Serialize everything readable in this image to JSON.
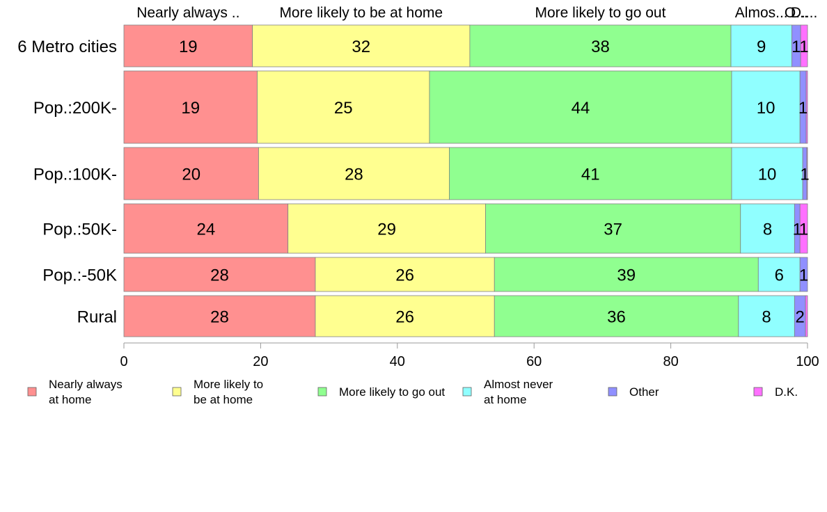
{
  "chart_data": {
    "type": "bar",
    "orientation": "horizontal",
    "stacked": true,
    "categories": [
      "6 Metro cities",
      "Pop.:200K-",
      "Pop.:100K-",
      "Pop.:50K-",
      "Pop.:-50K",
      "Rural"
    ],
    "series": [
      {
        "name": "Nearly always at home",
        "color": "#ff9090",
        "values": [
          18.8,
          19.5,
          19.7,
          24.0,
          28.0,
          28.0
        ],
        "labels": [
          "19",
          "19",
          "20",
          "24",
          "28",
          "28"
        ]
      },
      {
        "name": "More likely to be at home",
        "color": "#ffff90",
        "values": [
          31.8,
          25.2,
          27.9,
          28.9,
          26.2,
          26.2
        ],
        "labels": [
          "32",
          "25",
          "28",
          "29",
          "26",
          "26"
        ]
      },
      {
        "name": "More likely to go out",
        "color": "#90ff90",
        "values": [
          38.2,
          44.2,
          41.3,
          37.3,
          38.6,
          35.7
        ],
        "labels": [
          "38",
          "44",
          "41",
          "37",
          "39",
          "36"
        ]
      },
      {
        "name": "Almost never at home",
        "color": "#90ffff",
        "values": [
          8.9,
          10.0,
          10.4,
          7.9,
          6.1,
          8.2
        ],
        "labels": [
          "9",
          "10",
          "10",
          "8",
          "6",
          "8"
        ]
      },
      {
        "name": "Other",
        "color": "#9090ff",
        "values": [
          1.3,
          0.9,
          0.6,
          0.8,
          1.1,
          1.6
        ],
        "labels": [
          "1",
          "1",
          "1",
          "1",
          "1",
          "2"
        ]
      },
      {
        "name": "D.K.",
        "color": "#ff70ff",
        "values": [
          1.0,
          0.2,
          0.1,
          1.1,
          0.0,
          0.3
        ],
        "labels": [
          "1",
          "",
          "",
          "1",
          "",
          ""
        ]
      }
    ],
    "top_labels": [
      "Nearly always ..",
      "More likely to be at home",
      "More likely to go out",
      "Almos...",
      "O...",
      "D...."
    ],
    "legend_labels": [
      [
        "Nearly always",
        "at home"
      ],
      [
        "More likely to",
        "be at home"
      ],
      [
        "More likely to go out"
      ],
      [
        "Almost never",
        "at home"
      ],
      [
        "Other"
      ],
      [
        "D.K."
      ]
    ],
    "xlim": [
      0,
      100
    ],
    "xticks": [
      0,
      20,
      40,
      60,
      80,
      100
    ],
    "xlabel": "",
    "ylabel": "",
    "legend_position": "bottom",
    "grid": false
  }
}
